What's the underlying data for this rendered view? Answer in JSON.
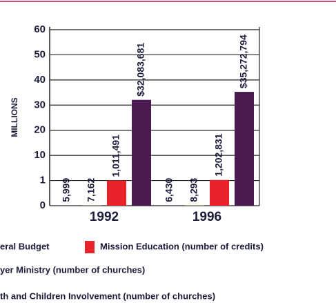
{
  "chart_data": {
    "type": "bar",
    "y_label": "MILLIONS",
    "categories": [
      "1992",
      "1996"
    ],
    "series": [
      {
        "name": "th and Children Involvement (number of churches)",
        "color": "#2a3fa8",
        "values": [
          0.005999,
          0.00643
        ],
        "value_labels": [
          "5,999",
          "6,430"
        ]
      },
      {
        "name": "yer Ministry (number of churches)",
        "color": "#f2d23a",
        "values": [
          0.007162,
          0.008293
        ],
        "value_labels": [
          "7,162",
          "8,293"
        ]
      },
      {
        "name": "Mission Education (number of credits)",
        "color": "#e8232a",
        "values": [
          1.011491,
          1.202831
        ],
        "value_labels": [
          "1,011,491",
          "1,202,831"
        ]
      },
      {
        "name": "eral Budget",
        "color": "#4a1a50",
        "values": [
          32.083681,
          35.272794
        ],
        "value_labels": [
          "$32,083,681",
          "$35,272,794"
        ]
      }
    ],
    "legend_order": [
      3,
      2,
      1,
      0
    ],
    "ylim": [
      0,
      60
    ],
    "yticks": [
      0,
      1,
      10,
      20,
      30,
      40,
      50,
      60
    ],
    "grid": true
  }
}
